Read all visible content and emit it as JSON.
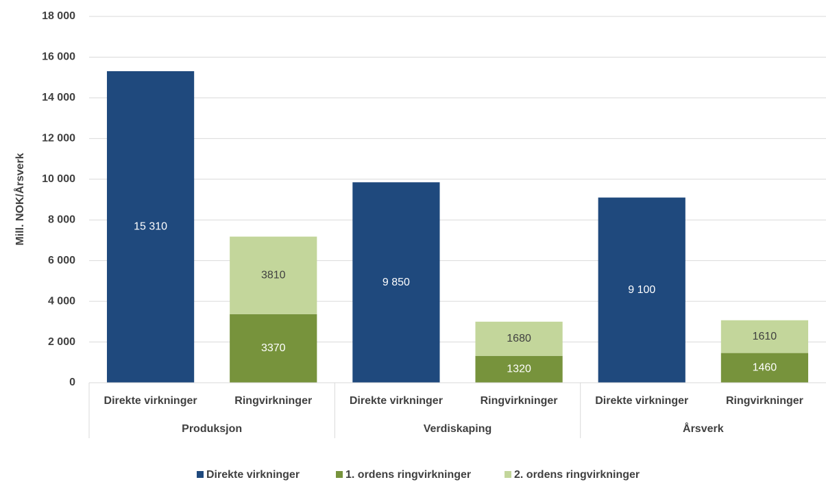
{
  "chart_data": {
    "type": "stacked-bar",
    "y_label": "Mill. NOK/Årsverk",
    "categories": [
      "Direkte virkninger",
      "Ringvirkninger",
      "Direkte virkninger",
      "Ringvirkninger",
      "Direkte virkninger",
      "Ringvirkninger"
    ],
    "groups": [
      "Produksjon",
      "Verdiskaping",
      "Årsverk"
    ],
    "series": [
      {
        "name": "Direkte virkninger",
        "color": "#1f497d",
        "label_color": "#ffffff",
        "values": [
          15310,
          null,
          9850,
          null,
          9100,
          null
        ],
        "value_labels": [
          "15 310",
          null,
          "9 850",
          null,
          "9 100",
          null
        ]
      },
      {
        "name": "1. ordens ringvirkninger",
        "color": "#77933c",
        "label_color": "#ffffff",
        "values": [
          null,
          3370,
          null,
          1320,
          null,
          1460
        ]
      },
      {
        "name": "2. ordens ringvirkninger",
        "color": "#c3d69b",
        "label_color": "#404040",
        "values": [
          null,
          3810,
          null,
          1680,
          null,
          1610
        ]
      }
    ],
    "ylim": [
      0,
      18000
    ],
    "yticks": [
      0,
      {
        "value": 2000,
        "label": "2 000"
      },
      {
        "value": 4000,
        "label": "4 000"
      },
      {
        "value": 6000,
        "label": "6 000"
      },
      {
        "value": 8000,
        "label": "8 000"
      },
      {
        "value": 10000,
        "label": "10 000"
      },
      {
        "value": 12000,
        "label": "12 000"
      },
      {
        "value": 14000,
        "label": "14 000"
      },
      {
        "value": 16000,
        "label": "16 000"
      },
      {
        "value": 18000,
        "label": "18 000"
      }
    ],
    "grid": true,
    "legend": "bottom"
  }
}
